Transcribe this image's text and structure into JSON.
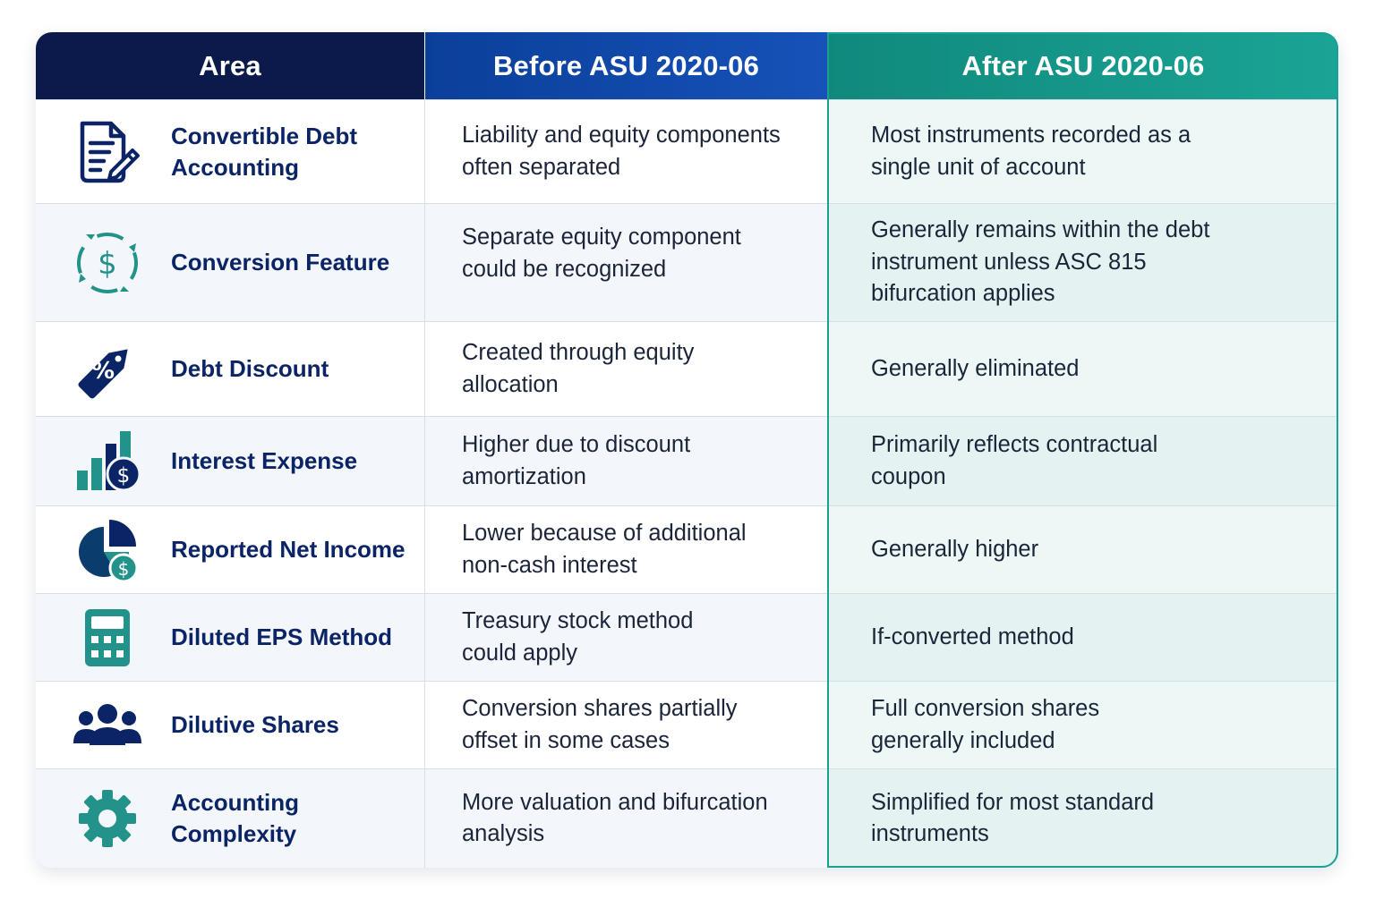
{
  "table": {
    "headers": {
      "area": "Area",
      "before": "Before ASU 2020-06",
      "after": "After ASU 2020-06"
    },
    "colors": {
      "area_header": "#0b1a4a",
      "before_header": "#1652b8",
      "after_header": "#16978a",
      "label_text": "#0b2466",
      "icon_navy": "#0b2466",
      "icon_teal": "#22928a"
    },
    "rows": [
      {
        "icon": "document-pen-icon",
        "area_line1": "Convertible Debt",
        "area_line2": "Accounting",
        "before_line1": "Liability and equity components",
        "before_line2": "often separated",
        "after_line1": "Most instruments recorded as a",
        "after_line2": "single unit of account"
      },
      {
        "icon": "dollar-cycle-icon",
        "area": "Conversion Feature",
        "before_line1": "Separate equity component",
        "before_line2": "could be recognized",
        "after_line1": "Generally remains within the debt",
        "after_line2": "instrument unless ASC 815",
        "after_line3": "bifurcation applies"
      },
      {
        "icon": "percent-tag-icon",
        "area": "Debt Discount",
        "before_line1": "Created through equity",
        "before_line2": "allocation",
        "after": "Generally eliminated"
      },
      {
        "icon": "bar-chart-dollar-icon",
        "area": "Interest Expense",
        "before_line1": "Higher due to discount",
        "before_line2": "amortization",
        "after_line1": "Primarily reflects contractual",
        "after_line2": "coupon"
      },
      {
        "icon": "pie-chart-dollar-icon",
        "area": "Reported Net Income",
        "before_line1": "Lower because of additional",
        "before_line2": "non-cash interest",
        "after": "Generally higher"
      },
      {
        "icon": "calculator-icon",
        "area": "Diluted EPS Method",
        "before_line1": "Treasury stock method",
        "before_line2": "could apply",
        "after": "If-converted method"
      },
      {
        "icon": "people-group-icon",
        "area": "Dilutive Shares",
        "before_line1": "Conversion shares partially",
        "before_line2": "offset in some cases",
        "after_line1": "Full conversion shares",
        "after_line2": "generally included"
      },
      {
        "icon": "gear-icon",
        "area": "Accounting Complexity",
        "before_line1": "More valuation and bifurcation",
        "before_line2": "analysis",
        "after_line1": "Simplified for most standard",
        "after_line2": "instruments"
      }
    ]
  }
}
